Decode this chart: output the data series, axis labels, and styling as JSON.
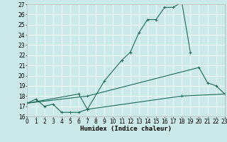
{
  "xlabel": "Humidex (Indice chaleur)",
  "bg_color": "#cce9e9",
  "line_color": "#1a6b5a",
  "grid_color": "#ffffff",
  "xlim": [
    0,
    23
  ],
  "ylim": [
    16,
    27
  ],
  "xticks": [
    0,
    1,
    2,
    3,
    4,
    5,
    6,
    7,
    8,
    9,
    10,
    11,
    12,
    13,
    14,
    15,
    16,
    17,
    18,
    19,
    20,
    21,
    22,
    23
  ],
  "yticks": [
    16,
    17,
    18,
    19,
    20,
    21,
    22,
    23,
    24,
    25,
    26,
    27
  ],
  "line_bottom_x": [
    0,
    1,
    2,
    3,
    4,
    5,
    6,
    7,
    18,
    23
  ],
  "line_bottom_y": [
    17.3,
    17.7,
    17.0,
    17.2,
    16.4,
    16.4,
    16.4,
    16.7,
    18.0,
    18.2
  ],
  "line_mid_x": [
    0,
    7,
    20,
    21,
    22,
    23
  ],
  "line_mid_y": [
    17.3,
    18.0,
    20.8,
    19.3,
    19.0,
    18.2
  ],
  "line_top_x": [
    0,
    6,
    7,
    9,
    11,
    12,
    13,
    14,
    15,
    16,
    17,
    18,
    19
  ],
  "line_top_y": [
    17.3,
    18.2,
    16.7,
    19.5,
    21.5,
    22.3,
    24.2,
    25.5,
    25.5,
    26.7,
    26.7,
    27.2,
    22.3
  ],
  "tick_fontsize": 5.5,
  "label_fontsize": 6.5
}
